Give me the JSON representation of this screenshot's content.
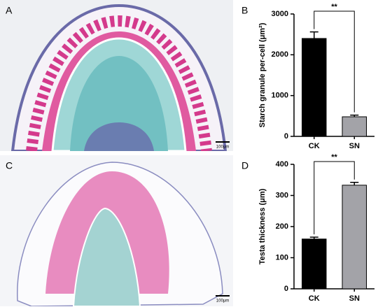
{
  "image_panels": [
    {
      "label": "A",
      "scale_bar": "100μm"
    },
    {
      "label": "C",
      "scale_bar": "100μm"
    }
  ],
  "chart_data": [
    {
      "type": "bar",
      "panel_label": "B",
      "ylabel": "Starch granule per-cell (μm²)",
      "categories": [
        "CK",
        "SN"
      ],
      "values": [
        2400,
        480
      ],
      "errors": [
        160,
        40
      ],
      "colors": [
        "#000000",
        "#a3a3a8"
      ],
      "ylim": [
        0,
        3000
      ],
      "yticks": [
        0,
        1000,
        2000,
        3000
      ],
      "significance": "**"
    },
    {
      "type": "bar",
      "panel_label": "D",
      "ylabel": "Testa thickness (μm)",
      "categories": [
        "CK",
        "SN"
      ],
      "values": [
        160,
        333
      ],
      "errors": [
        6,
        9
      ],
      "colors": [
        "#000000",
        "#a3a3a8"
      ],
      "ylim": [
        0,
        400
      ],
      "yticks": [
        0,
        100,
        200,
        300,
        400
      ],
      "significance": "**"
    }
  ]
}
